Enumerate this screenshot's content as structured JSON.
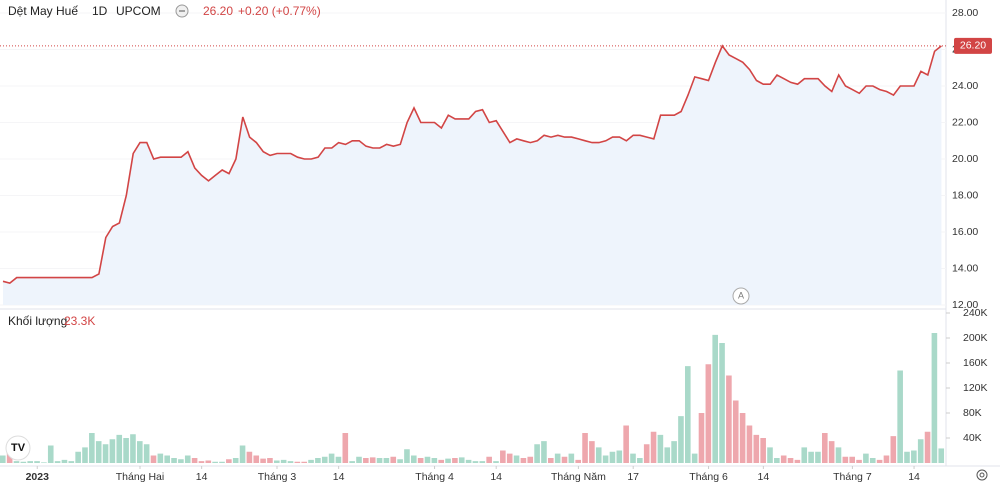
{
  "header": {
    "symbol": "Dệt May Huế",
    "interval": "1D",
    "exchange": "UPCOM",
    "price": "26.20",
    "change": "+0.20 (+0.77%)"
  },
  "chart_data": [
    {
      "type": "line",
      "color": "#d24545",
      "area_color": "#eef4fc",
      "grid": true,
      "price_label": "26.20",
      "annotation": "A",
      "values": [
        13.3,
        13.2,
        13.5,
        13.5,
        13.5,
        13.5,
        13.5,
        13.5,
        13.5,
        13.5,
        13.5,
        13.5,
        13.5,
        13.5,
        13.7,
        15.7,
        16.3,
        16.5,
        18.0,
        20.3,
        20.9,
        20.9,
        20.0,
        20.1,
        20.1,
        20.1,
        20.1,
        20.4,
        19.5,
        19.1,
        18.8,
        19.1,
        19.4,
        19.2,
        20.0,
        22.3,
        21.2,
        20.9,
        20.4,
        20.2,
        20.3,
        20.3,
        20.3,
        20.1,
        20.0,
        20.0,
        20.1,
        20.6,
        20.6,
        20.9,
        20.8,
        21.0,
        21.0,
        20.7,
        20.6,
        20.6,
        20.8,
        20.7,
        20.8,
        22.0,
        22.8,
        22.0,
        22.0,
        22.0,
        21.7,
        22.4,
        22.2,
        22.2,
        22.2,
        22.6,
        22.7,
        22.0,
        22.1,
        21.5,
        20.9,
        21.1,
        21.0,
        20.9,
        21.0,
        21.3,
        21.2,
        21.3,
        21.2,
        21.2,
        21.1,
        21.0,
        20.9,
        20.9,
        21.0,
        21.2,
        21.2,
        21.0,
        21.3,
        21.3,
        21.2,
        21.1,
        22.4,
        22.4,
        22.4,
        22.6,
        23.5,
        24.5,
        24.4,
        24.3,
        25.3,
        26.2,
        25.7,
        25.5,
        25.3,
        24.9,
        24.3,
        24.1,
        24.1,
        24.6,
        24.4,
        24.2,
        24.1,
        24.4,
        24.4,
        24.4,
        24.0,
        23.7,
        24.6,
        24.0,
        23.8,
        23.6,
        24.0,
        24.0,
        23.8,
        23.7,
        23.5,
        24.0,
        24.0,
        24.0,
        24.8,
        24.6,
        25.9,
        26.2
      ],
      "ylim": [
        12,
        28
      ],
      "yticks": [
        {
          "value": 12,
          "label": "12.00"
        },
        {
          "value": 14,
          "label": "14.00"
        },
        {
          "value": 16,
          "label": "16.00"
        },
        {
          "value": 18,
          "label": "18.00"
        },
        {
          "value": 20,
          "label": "20.00"
        },
        {
          "value": 22,
          "label": "22.00"
        },
        {
          "value": 24,
          "label": "24.00"
        },
        {
          "value": 26,
          "label": "26.00"
        },
        {
          "value": 28,
          "label": "28.00"
        }
      ],
      "xticks": [
        {
          "value": 5,
          "label": "2023"
        },
        {
          "value": 20,
          "label": "Tháng Hai"
        },
        {
          "value": 29,
          "label": "14"
        },
        {
          "value": 40,
          "label": "Tháng 3"
        },
        {
          "value": 49,
          "label": "14"
        },
        {
          "value": 63,
          "label": "Tháng 4"
        },
        {
          "value": 72,
          "label": "14"
        },
        {
          "value": 84,
          "label": "Tháng Năm"
        },
        {
          "value": 92,
          "label": "17"
        },
        {
          "value": 103,
          "label": "Tháng 6"
        },
        {
          "value": 111,
          "label": "14"
        },
        {
          "value": 124,
          "label": "Tháng 7"
        },
        {
          "value": 133,
          "label": "14"
        }
      ]
    },
    {
      "type": "bar",
      "title": "Khối lượng",
      "up_color": "#a9d9c9",
      "down_color": "#eea7ad",
      "values": [
        12000,
        22000,
        3000,
        2000,
        3000,
        3000,
        1000,
        28000,
        3000,
        5000,
        3000,
        18000,
        25000,
        48000,
        35000,
        30000,
        38000,
        45000,
        40000,
        46000,
        35000,
        30000,
        12000,
        15000,
        12000,
        8000,
        6000,
        12000,
        8000,
        3000,
        4000,
        2000,
        2000,
        6000,
        8000,
        28000,
        18000,
        12000,
        7000,
        8000,
        4000,
        5000,
        3000,
        2000,
        2000,
        5000,
        8000,
        10000,
        15000,
        10000,
        48000,
        3000,
        10000,
        8000,
        9000,
        8000,
        8000,
        10000,
        6000,
        22000,
        12000,
        8000,
        10000,
        8000,
        5000,
        7000,
        8000,
        9000,
        5000,
        3000,
        3000,
        10000,
        3000,
        20000,
        15000,
        12000,
        8000,
        10000,
        30000,
        35000,
        8000,
        15000,
        10000,
        15000,
        5000,
        48000,
        35000,
        25000,
        12000,
        18000,
        20000,
        60000,
        15000,
        8000,
        30000,
        50000,
        45000,
        25000,
        35000,
        75000,
        155000,
        15000,
        80000,
        158000,
        205000,
        192000,
        140000,
        100000,
        80000,
        60000,
        45000,
        40000,
        25000,
        8000,
        12000,
        8000,
        5000,
        25000,
        18000,
        18000,
        48000,
        35000,
        25000,
        10000,
        10000,
        5000,
        15000,
        8000,
        5000,
        12000,
        43000,
        148000,
        18000,
        20000,
        38000,
        50000,
        208000,
        23300
      ],
      "value_labels": {
        "137": "23.3K"
      },
      "ylim": [
        0,
        240000
      ],
      "yticks": [
        {
          "value": 40000,
          "label": "40K"
        },
        {
          "value": 80000,
          "label": "80K"
        },
        {
          "value": 120000,
          "label": "120K"
        },
        {
          "value": 160000,
          "label": "160K"
        },
        {
          "value": 200000,
          "label": "200K"
        },
        {
          "value": 240000,
          "label": "240K"
        }
      ]
    }
  ]
}
